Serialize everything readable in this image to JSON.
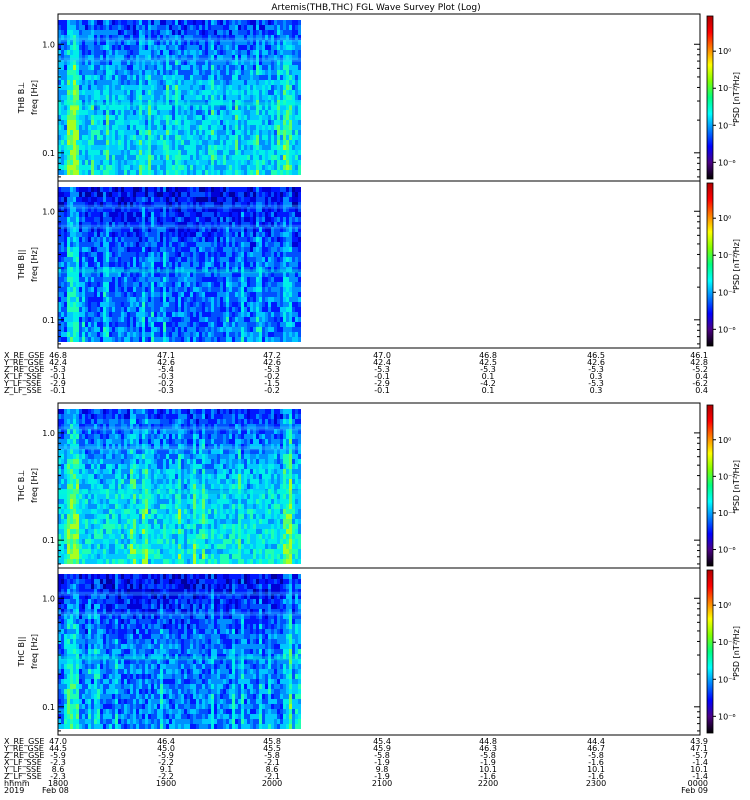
{
  "title": "Artemis(THB,THC) FGL Wave Survey Plot (Log)",
  "chart_data": {
    "type": "heatmap",
    "title": "Artemis(THB,THC) FGL Wave Survey Plot (Log)",
    "y_scale": "log",
    "y_ticks": [
      {
        "value": 1.0,
        "label": "1.0"
      },
      {
        "value": 0.1,
        "label": "0.1"
      }
    ],
    "ylim": [
      0.055,
      1.9
    ],
    "colorbar": {
      "scale": "log",
      "label": "PSD [nT²/Hz]",
      "ticks": [
        {
          "value": 1,
          "label": "10⁰"
        },
        {
          "value": 0.01,
          "label": "10⁻²"
        },
        {
          "value": 0.0001,
          "label": "10⁻⁴"
        },
        {
          "value": 1e-06,
          "label": "10⁻⁶"
        }
      ],
      "colors": [
        "#000000",
        "#4b0082",
        "#0000ff",
        "#0080ff",
        "#00ffff",
        "#00ff80",
        "#80ff00",
        "#ffff00",
        "#ff8000",
        "#ff0000",
        "#b00000"
      ]
    },
    "panels": [
      {
        "ylabel": "THB B⊥",
        "yunit": "freq [Hz]"
      },
      {
        "ylabel": "THB B||",
        "yunit": "freq [Hz]"
      },
      {
        "ylabel": "THC B⊥",
        "yunit": "freq [Hz]"
      },
      {
        "ylabel": "THC B||",
        "yunit": "freq [Hz]"
      }
    ],
    "coords_1": {
      "rows": [
        {
          "label": "X_RE_GSE",
          "values": [
            "46.8",
            "47.1",
            "47.2",
            "47.0",
            "46.8",
            "46.5",
            "46.1"
          ]
        },
        {
          "label": "Y_RE_GSE",
          "values": [
            "42.4",
            "42.6",
            "42.6",
            "42.4",
            "42.5",
            "42.6",
            "42.8"
          ]
        },
        {
          "label": "Z_RE_GSE",
          "values": [
            "-5.3",
            "-5.4",
            "-5.3",
            "-5.3",
            "-5.3",
            "-5.3",
            "-5.2"
          ]
        },
        {
          "label": "X_LF_SSE",
          "values": [
            "-0.1",
            "-0.3",
            "-0.2",
            "-0.1",
            "0.1",
            "0.3",
            "0.4"
          ]
        },
        {
          "label": "Y_LF_SSE",
          "values": [
            "-2.9",
            "-0.2",
            "-1.5",
            "-2.9",
            "-4.2",
            "-5.3",
            "-6.2"
          ]
        },
        {
          "label": "Z_LF_SSE",
          "values": [
            "-0.1",
            "-0.3",
            "-0.2",
            "-0.1",
            "0.1",
            "0.3",
            "0.4"
          ]
        }
      ]
    },
    "coords_2": {
      "rows": [
        {
          "label": "X_RE_GSE",
          "values": [
            "47.0",
            "46.4",
            "45.8",
            "45.4",
            "44.8",
            "44.4",
            "43.9"
          ]
        },
        {
          "label": "Y_RE_GSE",
          "values": [
            "44.5",
            "45.0",
            "45.5",
            "45.9",
            "46.3",
            "46.7",
            "47.1"
          ]
        },
        {
          "label": "Z_RE_GSE",
          "values": [
            "-5.9",
            "-5.9",
            "-5.8",
            "-5.8",
            "-5.8",
            "-5.8",
            "-5.7"
          ]
        },
        {
          "label": "X_LF_SSE",
          "values": [
            "-2.3",
            "-2.2",
            "-2.1",
            "-1.9",
            "-1.9",
            "-1.6",
            "-1.4"
          ]
        },
        {
          "label": "Y_LF_SSE",
          "values": [
            "8.6",
            "9.1",
            "8.6",
            "9.8",
            "10.1",
            "10.1",
            "10.1"
          ]
        },
        {
          "label": "Z_LF_SSE",
          "values": [
            "-2.3",
            "-2.2",
            "-2.1",
            "-1.9",
            "-1.6",
            "-1.6",
            "-1.4"
          ]
        }
      ]
    },
    "time_axis": {
      "row_label": "hhmm",
      "ticks": [
        "1800",
        "1900",
        "2000",
        "2100",
        "2200",
        "2300",
        "0000"
      ],
      "date_row_label": "2019",
      "date_start": "Feb 08",
      "date_end": "Feb 09"
    }
  }
}
